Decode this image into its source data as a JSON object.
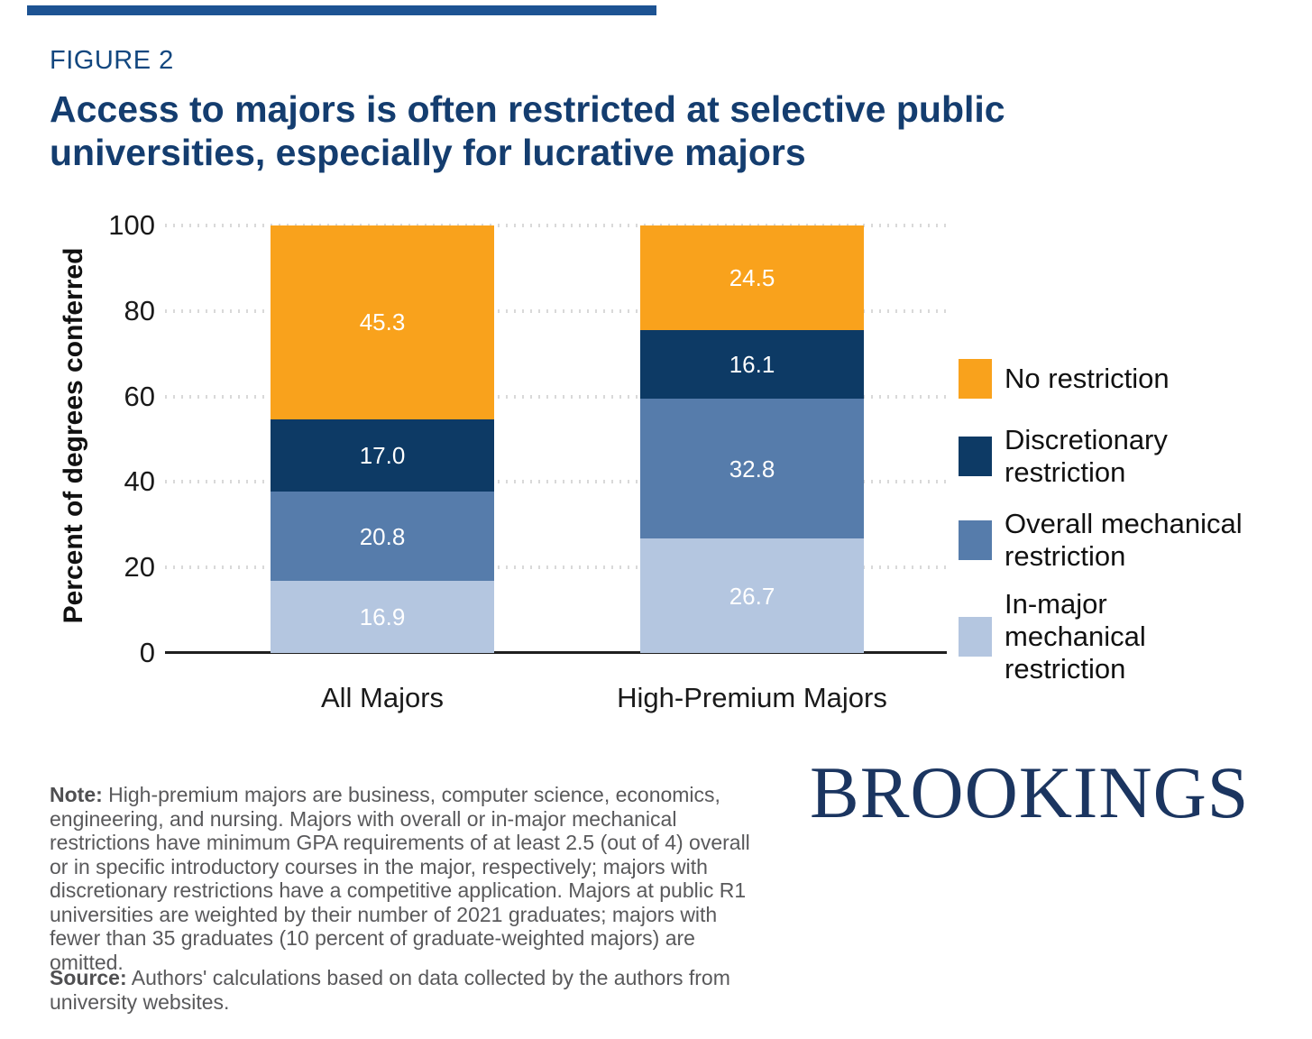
{
  "page": {
    "figure_label": "FIGURE 2",
    "title_lines": [
      "Access to majors is often restricted at selective public",
      "universities, especially for lucrative majors"
    ],
    "accent_color": "#1d5393",
    "title_color": "#143d6f",
    "logo_text": "BROOKINGS",
    "note_label": "Note:",
    "note_text": "High-premium majors are business, computer science, economics, engineering, and nursing. Majors with overall or in-major mechanical restrictions have minimum GPA requirements of at least 2.5 (out of 4) overall or in specific introductory courses in the major, respectively; majors with discretionary restrictions have a competitive application. Majors at public R1 universities are weighted by their number of 2021 graduates; majors with fewer than 35 graduates (10 percent of graduate-weighted majors) are omitted.",
    "source_label": "Source:",
    "source_text": "Authors' calculations based on data collected by the authors from university websites."
  },
  "chart_data": {
    "type": "bar",
    "stacked": true,
    "categories": [
      "All Majors",
      "High-Premium Majors"
    ],
    "series": [
      {
        "name": "In-major mechanical restriction",
        "color": "#b4c6e0",
        "values": [
          16.9,
          26.7
        ]
      },
      {
        "name": "Overall mechanical restriction",
        "color": "#567cab",
        "values": [
          20.8,
          32.8
        ]
      },
      {
        "name": "Discretionary restriction",
        "color": "#0d3a65",
        "values": [
          17.0,
          16.1
        ]
      },
      {
        "name": "No restriction",
        "color": "#f9a21c",
        "values": [
          45.3,
          24.5
        ]
      }
    ],
    "ylabel": "Percent of degrees conferred",
    "y_ticks": [
      0,
      20,
      40,
      60,
      80,
      100
    ],
    "ylim": [
      0,
      100
    ],
    "grid": "dotted horizontal",
    "bar_value_labels": {
      "All Majors": [
        16.9,
        20.8,
        17.0,
        45.3
      ],
      "High-Premium Majors": [
        26.7,
        32.8,
        16.1,
        24.5
      ]
    },
    "legend_position": "right",
    "legend_items": [
      {
        "name": "No restriction",
        "lines": [
          "No restriction"
        ]
      },
      {
        "name": "Discretionary restriction",
        "lines": [
          "Discretionary",
          "restriction"
        ]
      },
      {
        "name": "Overall mechanical restriction",
        "lines": [
          "Overall mechanical",
          "restriction"
        ]
      },
      {
        "name": "In-major mechanical restriction",
        "lines": [
          "In-major",
          "mechanical",
          "restriction"
        ]
      }
    ]
  }
}
